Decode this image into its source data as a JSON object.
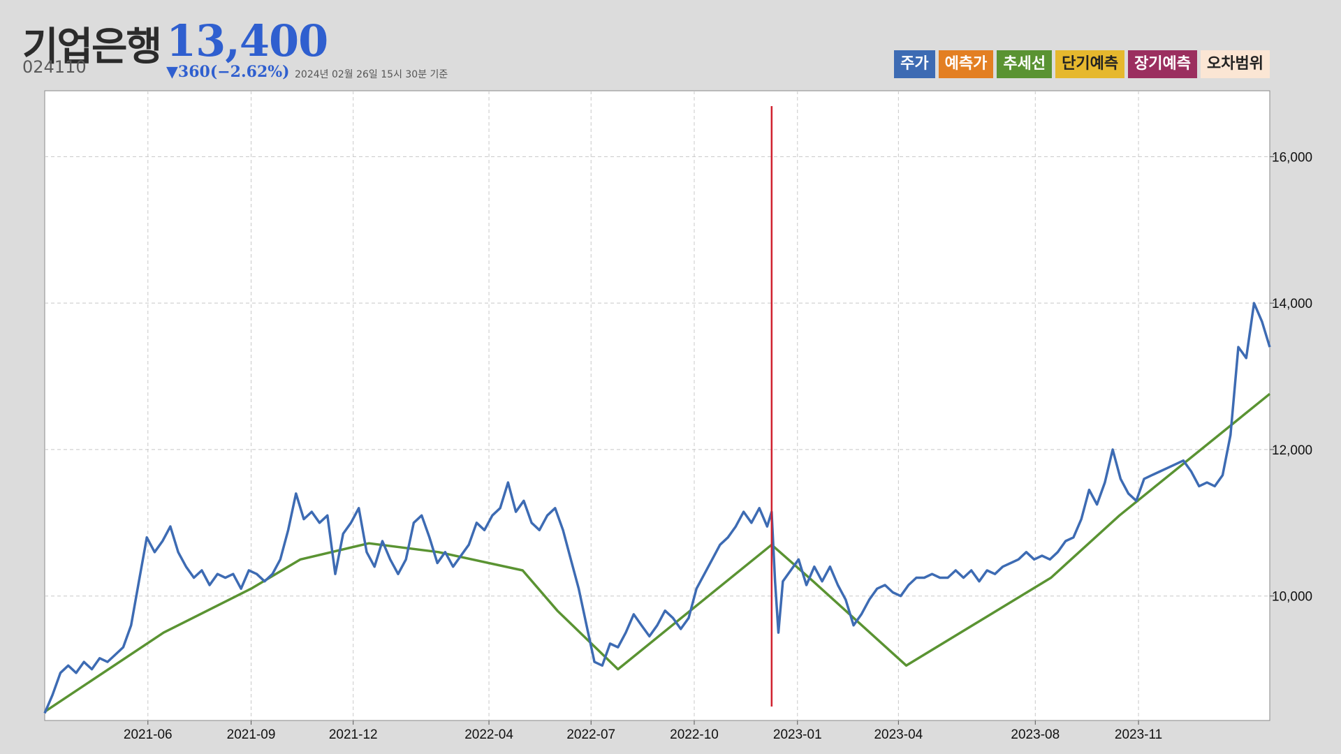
{
  "header": {
    "name": "기업은행",
    "price": "13,400",
    "code": "024110",
    "change": "▼360(−2.62%)",
    "as_of": "2024년 02월 26일 15시 30분 기준"
  },
  "legend": [
    {
      "label": "주가",
      "color": "#3d6bb3",
      "text_color": "#ffffff"
    },
    {
      "label": "예측가",
      "color": "#e37f22",
      "text_color": "#ffffff"
    },
    {
      "label": "추세선",
      "color": "#5a9332",
      "text_color": "#ffffff"
    },
    {
      "label": "단기예측",
      "color": "#e6b82e",
      "text_color": "#222222"
    },
    {
      "label": "장기예측",
      "color": "#9b2f5f",
      "text_color": "#ffffff"
    },
    {
      "label": "오차범위",
      "color": "#fbe6d4",
      "text_color": "#222222"
    }
  ],
  "chart_data": {
    "type": "line",
    "x_range": [
      "2021-03-01",
      "2024-02-26"
    ],
    "ylim": [
      8300,
      16900
    ],
    "y_ticks": [
      10000,
      12000,
      14000,
      16000
    ],
    "y_tick_labels": [
      "10,000",
      "12,000",
      "14,000",
      "16,000"
    ],
    "x_ticks": [
      "2021-06-01",
      "2021-09-01",
      "2021-12-01",
      "2022-04-01",
      "2022-07-01",
      "2022-10-01",
      "2023-01-01",
      "2023-04-01",
      "2023-08-01",
      "2023-11-01"
    ],
    "x_tick_labels": [
      "2021-06",
      "2021-09",
      "2021-12",
      "2022-04",
      "2022-07",
      "2022-10",
      "2023-01",
      "2023-04",
      "2023-08",
      "2023-11"
    ],
    "grid": true,
    "reference_line_x": "2022-12-09",
    "colors": {
      "price": "#3d6bb3",
      "trend": "#5a9332",
      "reference": "#d0202e"
    },
    "series": [
      {
        "name": "주가",
        "points": [
          [
            "2021-03-01",
            8400
          ],
          [
            "2021-03-08",
            8650
          ],
          [
            "2021-03-15",
            8950
          ],
          [
            "2021-03-22",
            9050
          ],
          [
            "2021-03-29",
            8950
          ],
          [
            "2021-04-05",
            9100
          ],
          [
            "2021-04-12",
            9000
          ],
          [
            "2021-04-19",
            9150
          ],
          [
            "2021-04-26",
            9100
          ],
          [
            "2021-05-03",
            9200
          ],
          [
            "2021-05-10",
            9300
          ],
          [
            "2021-05-17",
            9600
          ],
          [
            "2021-05-24",
            10200
          ],
          [
            "2021-05-31",
            10800
          ],
          [
            "2021-06-07",
            10600
          ],
          [
            "2021-06-14",
            10750
          ],
          [
            "2021-06-21",
            10950
          ],
          [
            "2021-06-28",
            10600
          ],
          [
            "2021-07-05",
            10400
          ],
          [
            "2021-07-12",
            10250
          ],
          [
            "2021-07-19",
            10350
          ],
          [
            "2021-07-26",
            10150
          ],
          [
            "2021-08-02",
            10300
          ],
          [
            "2021-08-09",
            10250
          ],
          [
            "2021-08-16",
            10300
          ],
          [
            "2021-08-23",
            10100
          ],
          [
            "2021-08-30",
            10350
          ],
          [
            "2021-09-06",
            10300
          ],
          [
            "2021-09-13",
            10200
          ],
          [
            "2021-09-20",
            10300
          ],
          [
            "2021-09-27",
            10500
          ],
          [
            "2021-10-04",
            10900
          ],
          [
            "2021-10-11",
            11400
          ],
          [
            "2021-10-18",
            11050
          ],
          [
            "2021-10-25",
            11150
          ],
          [
            "2021-11-01",
            11000
          ],
          [
            "2021-11-08",
            11100
          ],
          [
            "2021-11-15",
            10300
          ],
          [
            "2021-11-22",
            10850
          ],
          [
            "2021-11-29",
            11000
          ],
          [
            "2021-12-06",
            11200
          ],
          [
            "2021-12-13",
            10600
          ],
          [
            "2021-12-20",
            10400
          ],
          [
            "2021-12-27",
            10750
          ],
          [
            "2022-01-03",
            10500
          ],
          [
            "2022-01-10",
            10300
          ],
          [
            "2022-01-17",
            10500
          ],
          [
            "2022-01-24",
            11000
          ],
          [
            "2022-01-31",
            11100
          ],
          [
            "2022-02-07",
            10800
          ],
          [
            "2022-02-14",
            10450
          ],
          [
            "2022-02-21",
            10600
          ],
          [
            "2022-02-28",
            10400
          ],
          [
            "2022-03-07",
            10550
          ],
          [
            "2022-03-14",
            10700
          ],
          [
            "2022-03-21",
            11000
          ],
          [
            "2022-03-28",
            10900
          ],
          [
            "2022-04-04",
            11100
          ],
          [
            "2022-04-11",
            11200
          ],
          [
            "2022-04-18",
            11550
          ],
          [
            "2022-04-25",
            11150
          ],
          [
            "2022-05-02",
            11300
          ],
          [
            "2022-05-09",
            11000
          ],
          [
            "2022-05-16",
            10900
          ],
          [
            "2022-05-23",
            11100
          ],
          [
            "2022-05-30",
            11200
          ],
          [
            "2022-06-06",
            10900
          ],
          [
            "2022-06-13",
            10500
          ],
          [
            "2022-06-20",
            10100
          ],
          [
            "2022-06-27",
            9600
          ],
          [
            "2022-07-04",
            9100
          ],
          [
            "2022-07-11",
            9050
          ],
          [
            "2022-07-18",
            9350
          ],
          [
            "2022-07-25",
            9300
          ],
          [
            "2022-08-01",
            9500
          ],
          [
            "2022-08-08",
            9750
          ],
          [
            "2022-08-15",
            9600
          ],
          [
            "2022-08-22",
            9450
          ],
          [
            "2022-08-29",
            9600
          ],
          [
            "2022-09-05",
            9800
          ],
          [
            "2022-09-12",
            9700
          ],
          [
            "2022-09-19",
            9550
          ],
          [
            "2022-09-26",
            9700
          ],
          [
            "2022-10-03",
            10100
          ],
          [
            "2022-10-10",
            10300
          ],
          [
            "2022-10-17",
            10500
          ],
          [
            "2022-10-24",
            10700
          ],
          [
            "2022-10-31",
            10800
          ],
          [
            "2022-11-07",
            10950
          ],
          [
            "2022-11-14",
            11150
          ],
          [
            "2022-11-21",
            11000
          ],
          [
            "2022-11-28",
            11200
          ],
          [
            "2022-12-05",
            10950
          ],
          [
            "2022-12-09",
            11150
          ],
          [
            "2022-12-12",
            10200
          ],
          [
            "2022-12-15",
            9500
          ],
          [
            "2022-12-19",
            10200
          ],
          [
            "2022-12-26",
            10350
          ],
          [
            "2023-01-02",
            10500
          ],
          [
            "2023-01-09",
            10150
          ],
          [
            "2023-01-16",
            10400
          ],
          [
            "2023-01-23",
            10200
          ],
          [
            "2023-01-30",
            10400
          ],
          [
            "2023-02-06",
            10150
          ],
          [
            "2023-02-13",
            9950
          ],
          [
            "2023-02-20",
            9600
          ],
          [
            "2023-02-27",
            9750
          ],
          [
            "2023-03-06",
            9950
          ],
          [
            "2023-03-13",
            10100
          ],
          [
            "2023-03-20",
            10150
          ],
          [
            "2023-03-27",
            10050
          ],
          [
            "2023-04-03",
            10000
          ],
          [
            "2023-04-10",
            10150
          ],
          [
            "2023-04-17",
            10250
          ],
          [
            "2023-04-24",
            10250
          ],
          [
            "2023-05-01",
            10300
          ],
          [
            "2023-05-08",
            10250
          ],
          [
            "2023-05-15",
            10250
          ],
          [
            "2023-05-22",
            10350
          ],
          [
            "2023-05-29",
            10250
          ],
          [
            "2023-06-05",
            10350
          ],
          [
            "2023-06-12",
            10200
          ],
          [
            "2023-06-19",
            10350
          ],
          [
            "2023-06-26",
            10300
          ],
          [
            "2023-07-03",
            10400
          ],
          [
            "2023-07-10",
            10450
          ],
          [
            "2023-07-17",
            10500
          ],
          [
            "2023-07-24",
            10600
          ],
          [
            "2023-07-31",
            10500
          ],
          [
            "2023-08-07",
            10550
          ],
          [
            "2023-08-14",
            10500
          ],
          [
            "2023-08-21",
            10600
          ],
          [
            "2023-08-28",
            10750
          ],
          [
            "2023-09-04",
            10800
          ],
          [
            "2023-09-11",
            11050
          ],
          [
            "2023-09-18",
            11450
          ],
          [
            "2023-09-25",
            11250
          ],
          [
            "2023-10-02",
            11550
          ],
          [
            "2023-10-09",
            12000
          ],
          [
            "2023-10-16",
            11600
          ],
          [
            "2023-10-23",
            11400
          ],
          [
            "2023-10-30",
            11300
          ],
          [
            "2023-11-06",
            11600
          ],
          [
            "2023-11-13",
            11650
          ],
          [
            "2023-11-20",
            11700
          ],
          [
            "2023-11-27",
            11750
          ],
          [
            "2023-12-04",
            11800
          ],
          [
            "2023-12-11",
            11850
          ],
          [
            "2023-12-18",
            11700
          ],
          [
            "2023-12-25",
            11500
          ],
          [
            "2024-01-01",
            11550
          ],
          [
            "2024-01-08",
            11500
          ],
          [
            "2024-01-15",
            11650
          ],
          [
            "2024-01-22",
            12200
          ],
          [
            "2024-01-29",
            13400
          ],
          [
            "2024-02-05",
            13250
          ],
          [
            "2024-02-12",
            14000
          ],
          [
            "2024-02-19",
            13750
          ],
          [
            "2024-02-26",
            13400
          ]
        ]
      },
      {
        "name": "추세선",
        "points": [
          [
            "2021-03-01",
            8420
          ],
          [
            "2021-06-15",
            9500
          ],
          [
            "2021-09-01",
            10100
          ],
          [
            "2021-10-15",
            10500
          ],
          [
            "2021-12-15",
            10720
          ],
          [
            "2022-02-15",
            10600
          ],
          [
            "2022-05-01",
            10350
          ],
          [
            "2022-06-01",
            9800
          ],
          [
            "2022-07-25",
            9000
          ],
          [
            "2022-12-09",
            10700
          ],
          [
            "2023-01-15",
            10200
          ],
          [
            "2023-04-08",
            9050
          ],
          [
            "2023-08-15",
            10250
          ],
          [
            "2023-10-15",
            11100
          ],
          [
            "2024-02-26",
            12760
          ]
        ]
      }
    ]
  }
}
